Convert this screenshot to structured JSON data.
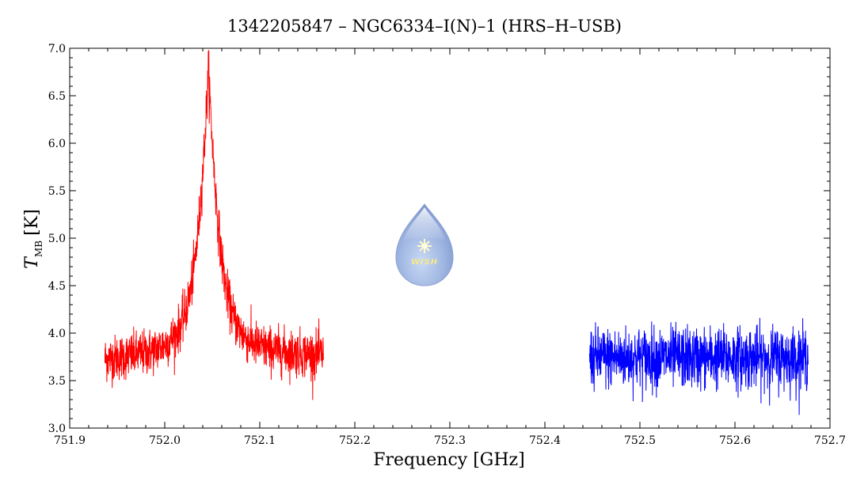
{
  "chart_data": {
    "type": "line",
    "title": "1342205847 – NGC6334–I(N)–1 (HRS–H–USB)",
    "xlabel": "Frequency [GHz]",
    "ylabel_main": "T",
    "ylabel_sub": "MB",
    "ylabel_unit": "[K]",
    "xlim": [
      751.9,
      752.7
    ],
    "ylim": [
      3.0,
      7.0
    ],
    "x_ticks": [
      "751.9",
      "752.0",
      "752.1",
      "752.2",
      "752.3",
      "752.4",
      "752.5",
      "752.6",
      "752.7"
    ],
    "y_ticks": [
      "3.0",
      "3.5",
      "4.0",
      "4.5",
      "5.0",
      "5.5",
      "6.0",
      "6.5",
      "7.0"
    ],
    "grid": false,
    "series": [
      {
        "color": "#ff0000",
        "x_range": [
          751.937,
          752.167
        ],
        "model": "emission-line",
        "peak_x": 752.046,
        "peak_y": 6.8,
        "baseline": 3.75,
        "noise": 0.12
      },
      {
        "color": "#0000ff",
        "x_range": [
          752.447,
          752.677
        ],
        "model": "flat-noise",
        "baseline": 3.74,
        "noise": 0.16
      }
    ]
  },
  "logo": {
    "text": "WISH",
    "icon": "water-drop-icon"
  }
}
